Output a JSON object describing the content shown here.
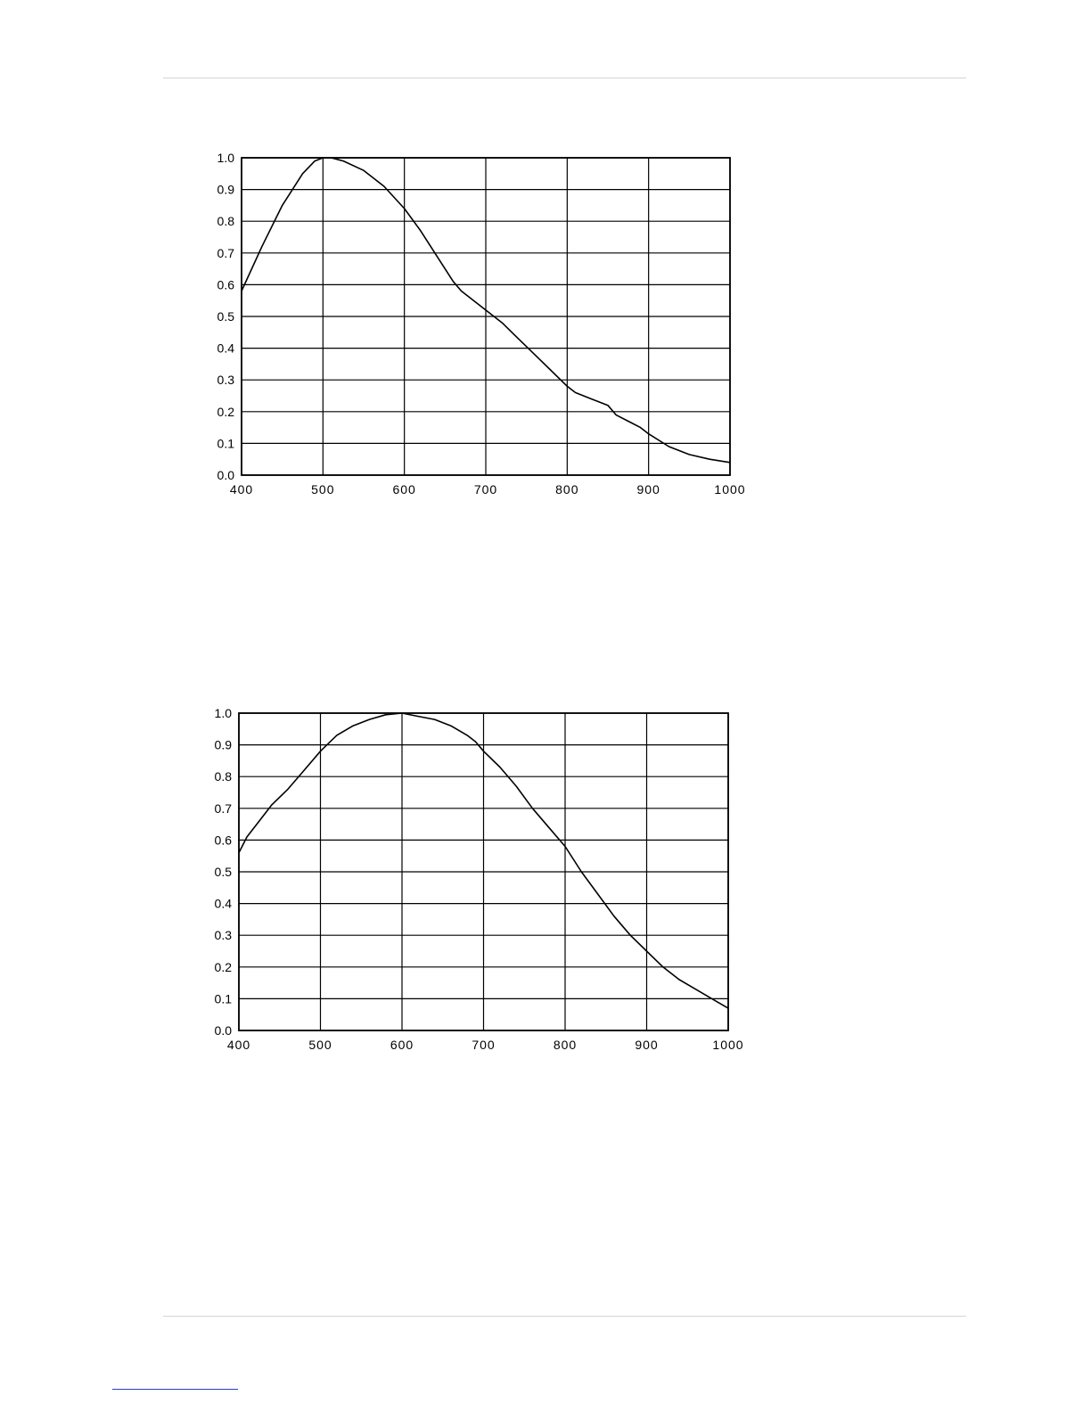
{
  "chart_data": [
    {
      "type": "line",
      "title": "",
      "xlabel": "",
      "ylabel": "",
      "xlim": [
        400,
        1000
      ],
      "ylim": [
        0.0,
        1.0
      ],
      "grid": true,
      "x_ticks": [
        "400",
        "500",
        "600",
        "700",
        "800",
        "900",
        "1000"
      ],
      "y_ticks": [
        "0.0",
        "0.1",
        "0.2",
        "0.3",
        "0.4",
        "0.5",
        "0.6",
        "0.7",
        "0.8",
        "0.9",
        "1.0"
      ],
      "series": [
        {
          "x": [
            400,
            425,
            450,
            475,
            490,
            500,
            510,
            525,
            550,
            575,
            600,
            620,
            640,
            660,
            670,
            690,
            700,
            720,
            740,
            760,
            780,
            800,
            810,
            830,
            850,
            860,
            875,
            890,
            900,
            925,
            950,
            975,
            1000
          ],
          "y": [
            0.58,
            0.72,
            0.85,
            0.95,
            0.99,
            1.0,
            1.0,
            0.99,
            0.96,
            0.91,
            0.84,
            0.77,
            0.69,
            0.61,
            0.58,
            0.54,
            0.52,
            0.48,
            0.43,
            0.38,
            0.33,
            0.28,
            0.26,
            0.24,
            0.22,
            0.19,
            0.17,
            0.15,
            0.13,
            0.09,
            0.065,
            0.05,
            0.04
          ]
        }
      ]
    },
    {
      "type": "line",
      "title": "",
      "xlabel": "",
      "ylabel": "",
      "xlim": [
        400,
        1000
      ],
      "ylim": [
        0.0,
        1.0
      ],
      "grid": true,
      "x_ticks": [
        "400",
        "500",
        "600",
        "700",
        "800",
        "900",
        "1000"
      ],
      "y_ticks": [
        "0.0",
        "0.1",
        "0.2",
        "0.3",
        "0.4",
        "0.5",
        "0.6",
        "0.7",
        "0.8",
        "0.9",
        "1.0"
      ],
      "series": [
        {
          "x": [
            400,
            410,
            425,
            440,
            460,
            480,
            500,
            520,
            540,
            560,
            580,
            600,
            620,
            640,
            660,
            680,
            690,
            700,
            720,
            740,
            760,
            780,
            800,
            820,
            840,
            860,
            880,
            900,
            920,
            940,
            960,
            980,
            1000
          ],
          "y": [
            0.56,
            0.61,
            0.66,
            0.71,
            0.76,
            0.82,
            0.88,
            0.93,
            0.96,
            0.98,
            0.995,
            1.0,
            0.99,
            0.98,
            0.96,
            0.93,
            0.91,
            0.88,
            0.83,
            0.77,
            0.7,
            0.64,
            0.58,
            0.5,
            0.43,
            0.36,
            0.3,
            0.25,
            0.2,
            0.16,
            0.13,
            0.1,
            0.07
          ]
        }
      ]
    }
  ]
}
